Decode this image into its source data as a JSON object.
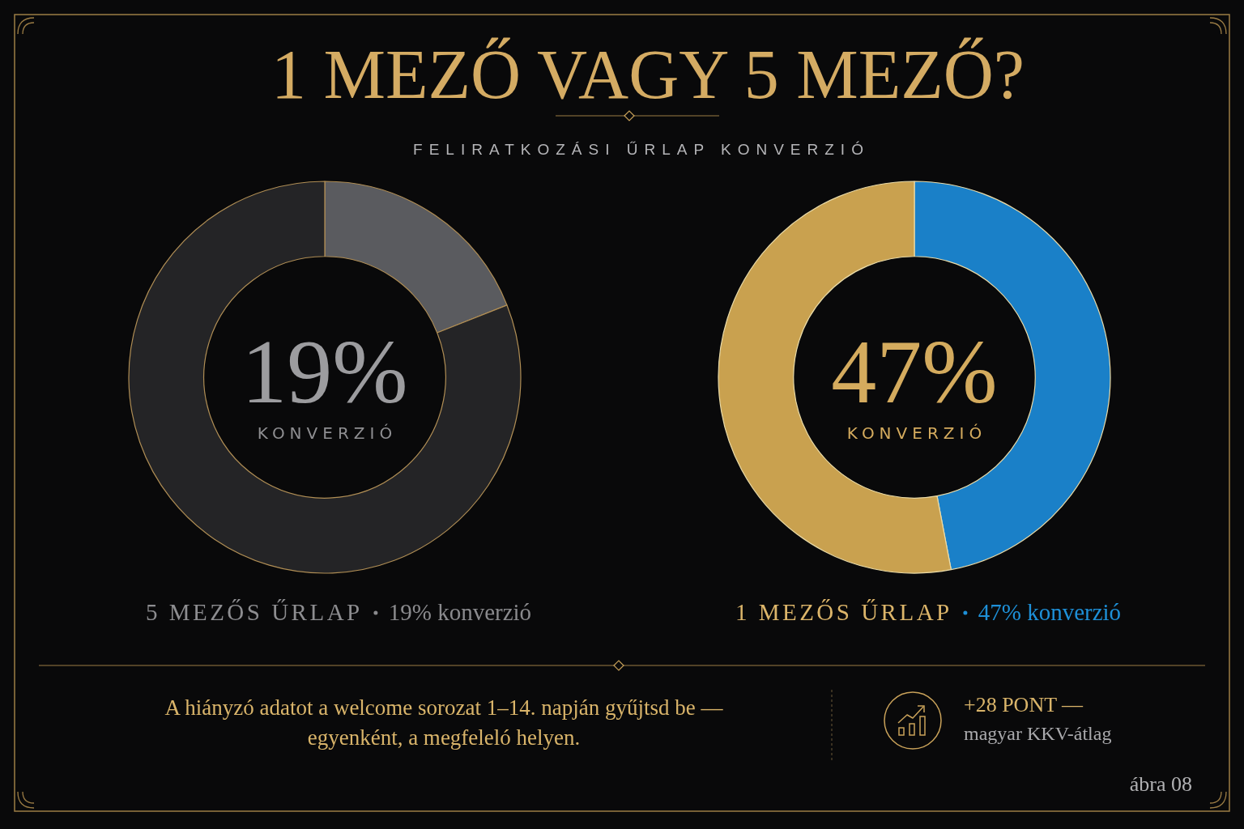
{
  "chart_data": [
    {
      "type": "other",
      "title": "1 MEZŐ VAGY 5 MEZŐ?",
      "subtitle": "FELIRATKOZÁSI ŰRLAP KONVERZIÓ"
    },
    {
      "type": "donut",
      "categories": [
        null,
        null
      ],
      "values": [
        19,
        81
      ],
      "colors": [
        "#5a5b5f",
        "#242426"
      ],
      "xlabel": "5 MEZŐS ŰRLAP",
      "annotations": [
        "19%",
        "KONVERZIÓ",
        "19% konverzió"
      ]
    },
    {
      "type": "donut",
      "categories": [
        null,
        null
      ],
      "values": [
        47,
        53
      ],
      "colors": [
        "#1a80c8",
        "#c9a14f"
      ],
      "xlabel": "1 MEZŐS ŰRLAP",
      "annotations": [
        "47%",
        "KONVERZIÓ",
        "47% konverzió"
      ]
    },
    {
      "type": "other",
      "annotations": [
        "A hiányzó adatot a welcome sorozat 1–14. napján gyűjtsd be — egyenként, a megfeleló helyen.",
        "+28 PONT —",
        "magyar KKV-átlag",
        "ábra 08"
      ]
    }
  ]
}
